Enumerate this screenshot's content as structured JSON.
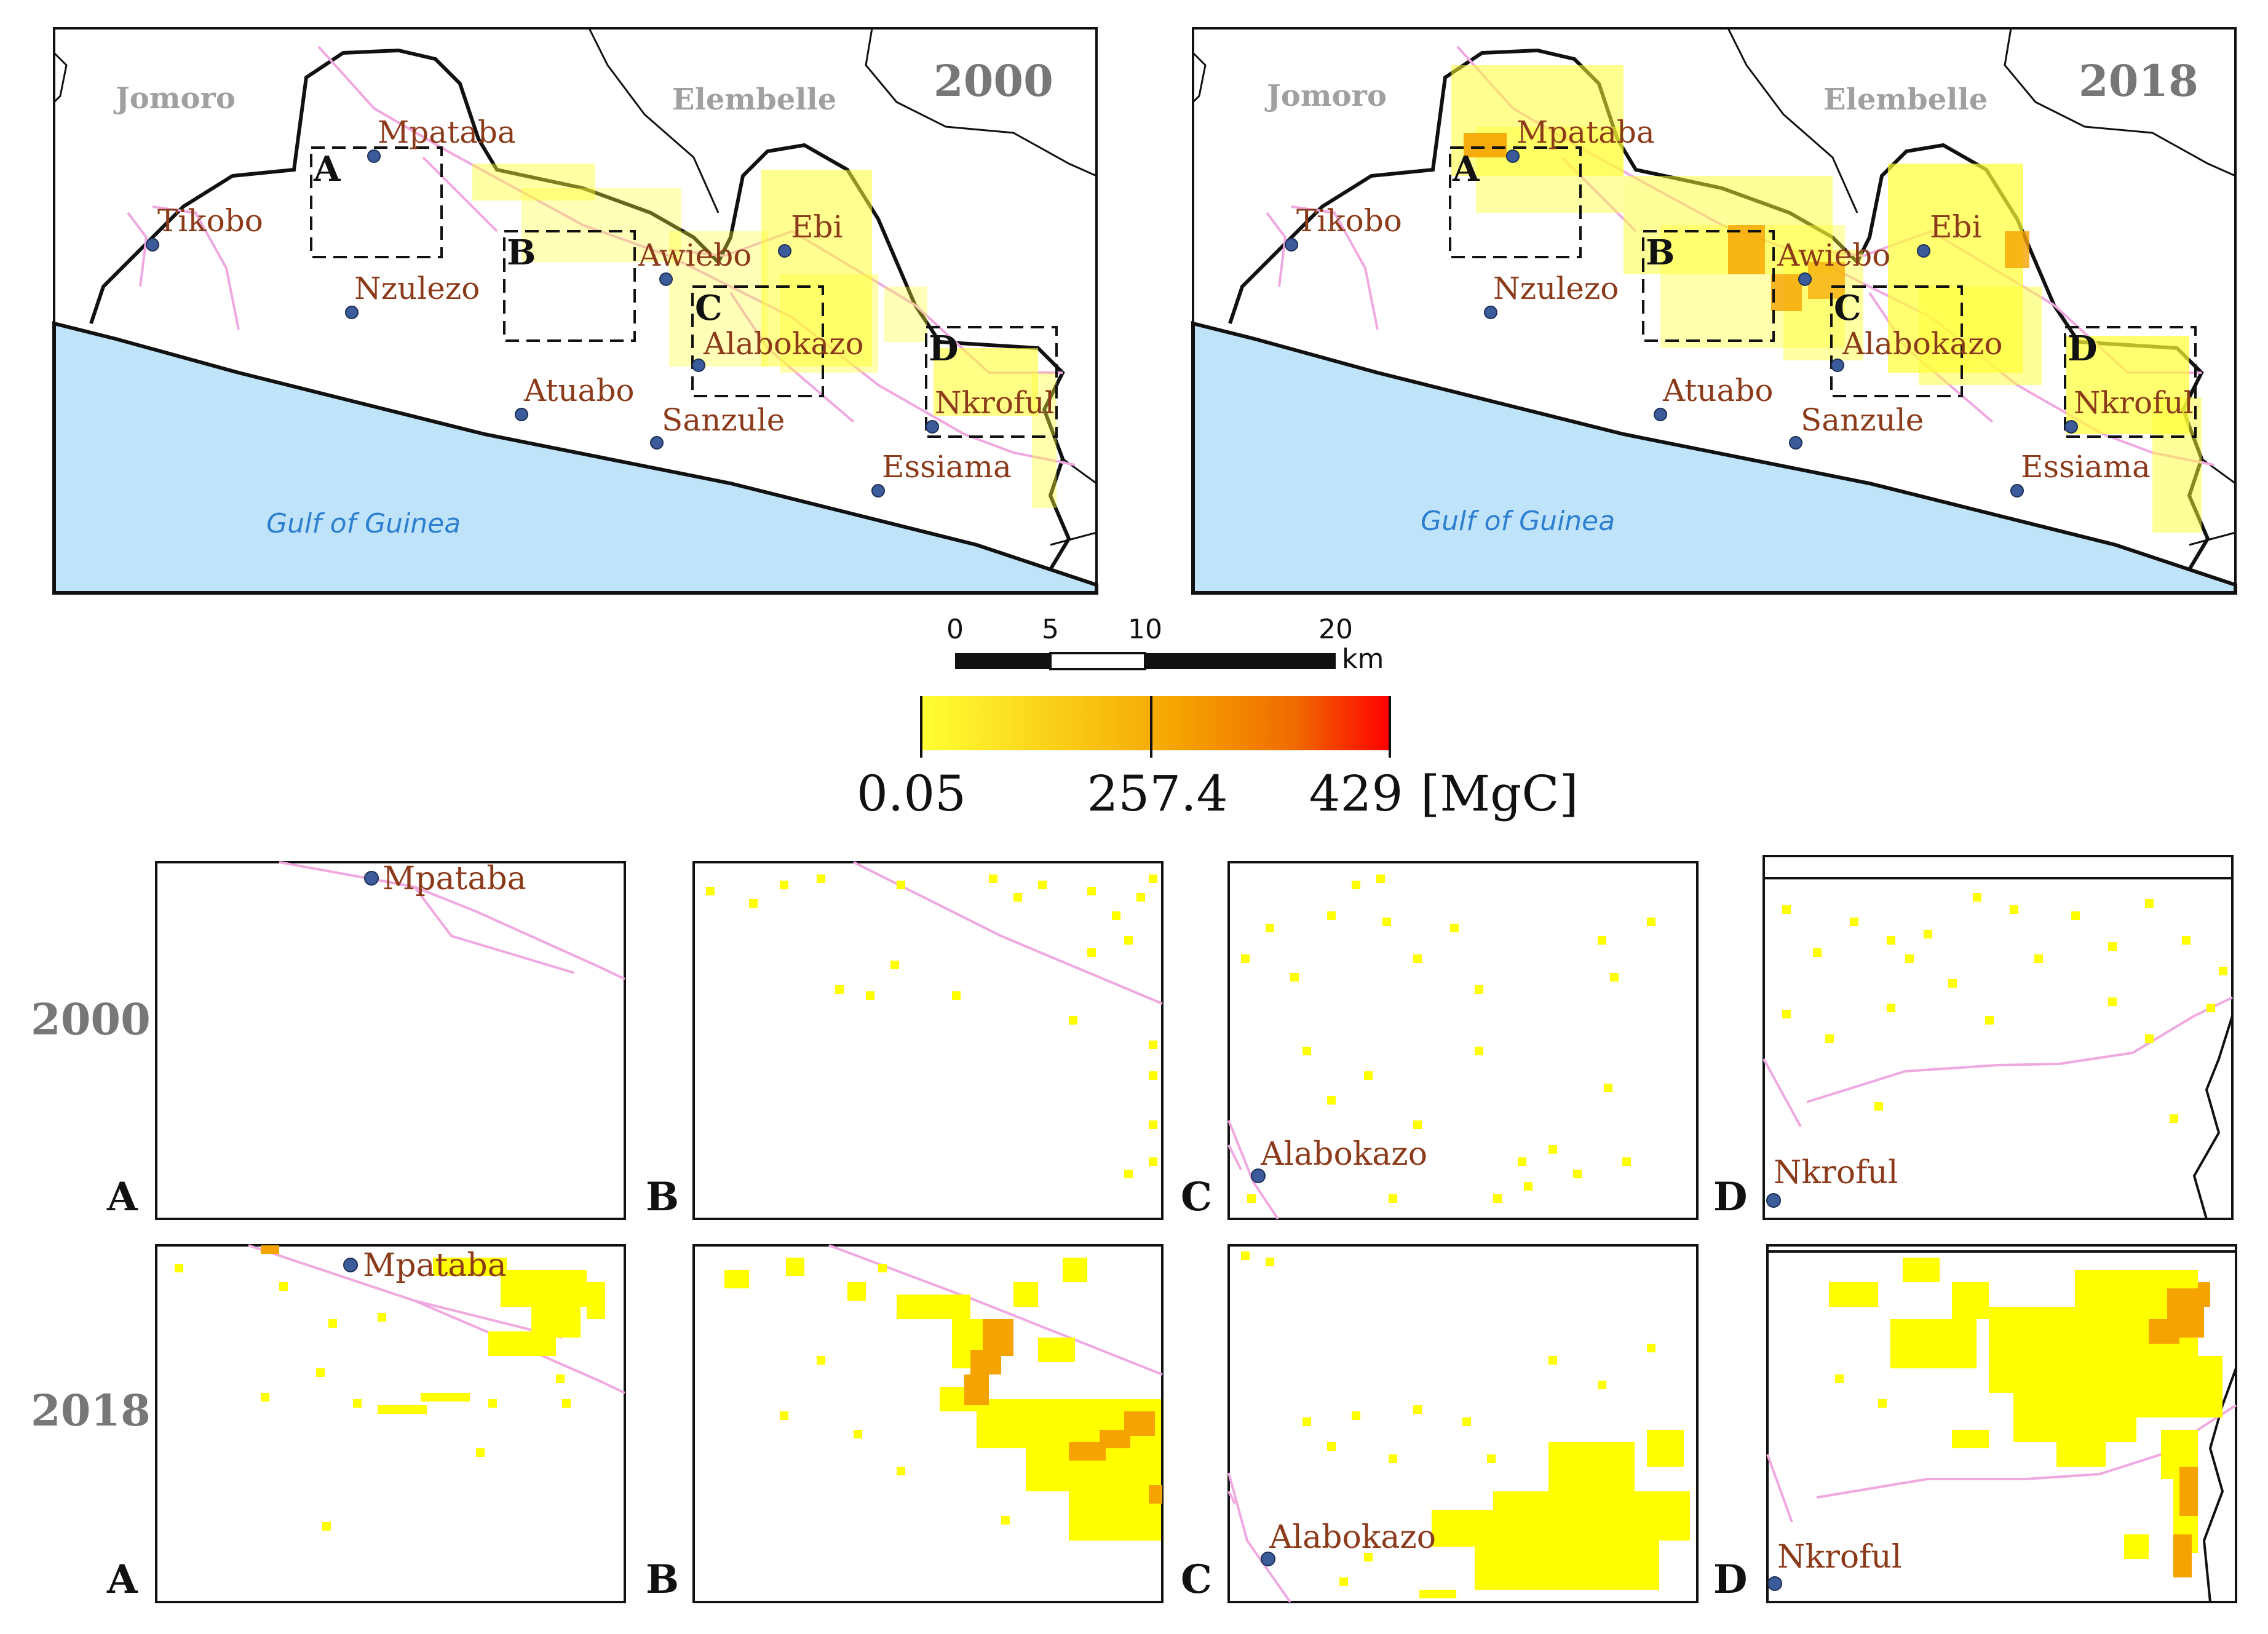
{
  "maps": [
    {
      "year": "2000",
      "districts": [
        "Jomoro",
        "Elembelle"
      ],
      "sea_label": "Gulf of Guinea",
      "places": [
        "Tikobo",
        "Mpataba",
        "Nzulezo",
        "Awiebo",
        "Ebi",
        "Alabokazo",
        "Atuabo",
        "Sanzule",
        "Nkroful",
        "Essiama"
      ],
      "boxes": [
        "A",
        "B",
        "C",
        "D"
      ]
    },
    {
      "year": "2018",
      "districts": [
        "Jomoro",
        "Elembelle"
      ],
      "sea_label": "Gulf of Guinea",
      "places": [
        "Tikobo",
        "Mpataba",
        "Nzulezo",
        "Awiebo",
        "Ebi",
        "Alabokazo",
        "Atuabo",
        "Sanzule",
        "Nkroful",
        "Essiama"
      ],
      "boxes": [
        "A",
        "B",
        "C",
        "D"
      ]
    }
  ],
  "scale_bar": {
    "ticks": [
      "0",
      "5",
      "10",
      "20"
    ],
    "unit": "km"
  },
  "legend": {
    "min": "0.05",
    "mid": "257.4",
    "max": "429",
    "unit": "[MgC]"
  },
  "colors": {
    "sea": "#bfe4f9",
    "road": "#f0a8e0",
    "low": "#ffff00",
    "mid": "#f5a300",
    "high": "#ff0000",
    "place_dot": "#3b5b9a"
  },
  "zoom_rows": [
    {
      "label": "2000",
      "panels": [
        {
          "id": "A",
          "place": "Mpataba"
        },
        {
          "id": "B",
          "place": ""
        },
        {
          "id": "C",
          "place": "Alabokazo"
        },
        {
          "id": "D",
          "place": "Nkroful"
        }
      ]
    },
    {
      "label": "2018",
      "panels": [
        {
          "id": "A",
          "place": "Mpataba"
        },
        {
          "id": "B",
          "place": ""
        },
        {
          "id": "C",
          "place": "Alabokazo"
        },
        {
          "id": "D",
          "place": "Nkroful"
        }
      ]
    }
  ]
}
